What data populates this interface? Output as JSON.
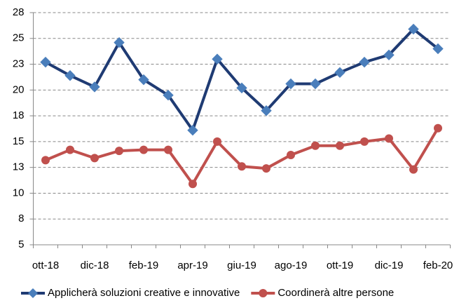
{
  "chart_data": {
    "type": "line",
    "categories": [
      "ott-18",
      null,
      "dic-18",
      null,
      "feb-19",
      null,
      "apr-19",
      null,
      "giu-19",
      null,
      "ago-19",
      null,
      "ott-19",
      null,
      "dic-19",
      null,
      "feb-20"
    ],
    "series": [
      {
        "name": "Applicherà soluzioni creative e innovative",
        "color": "#1f3b73",
        "marker_color": "#4a7ebb",
        "marker": "diamond",
        "values": [
          22.7,
          21.4,
          20.3,
          24.6,
          21.0,
          19.5,
          16.1,
          23.0,
          20.2,
          18.0,
          20.6,
          20.6,
          21.7,
          22.7,
          23.4,
          25.9,
          24.0
        ]
      },
      {
        "name": "Coordinerà altre persone",
        "color": "#c0504d",
        "marker_color": "#c0504d",
        "marker": "circle",
        "values": [
          13.2,
          14.2,
          13.4,
          14.1,
          14.2,
          14.2,
          10.9,
          15.0,
          12.6,
          12.4,
          13.7,
          14.6,
          14.6,
          15.0,
          15.3,
          12.3,
          16.3
        ]
      }
    ],
    "ylim": [
      5,
      27.5
    ],
    "yticks": [
      5,
      {
        "value": 7.5,
        "label": "8"
      },
      10,
      {
        "value": 12.5,
        "label": "13"
      },
      15,
      {
        "value": 17.5,
        "label": "18"
      },
      20,
      {
        "value": 22.5,
        "label": "23"
      },
      25,
      {
        "value": 27.5,
        "label": "28"
      }
    ],
    "grid": true,
    "legend": "bottom"
  }
}
